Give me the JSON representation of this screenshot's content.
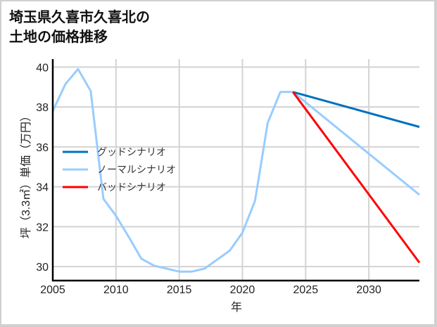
{
  "title_lines": [
    "埼玉県久喜市久喜北の",
    "土地の価格推移"
  ],
  "chart_data": {
    "type": "line",
    "title": "埼玉県久喜市久喜北の土地の価格推移",
    "xlabel": "年",
    "ylabel": "坪（3.3㎡）単価（万円）",
    "xlim": [
      2005,
      2034
    ],
    "ylim": [
      29.3,
      40.4
    ],
    "x_ticks": [
      2005,
      2010,
      2015,
      2020,
      2025,
      2030
    ],
    "y_ticks": [
      30,
      32,
      34,
      36,
      38,
      40
    ],
    "grid": true,
    "legend_position": "center-left",
    "series": [
      {
        "name": "グッドシナリオ",
        "color": "#0070c0",
        "x": [
          2024,
          2034
        ],
        "values": [
          38.75,
          37.0
        ]
      },
      {
        "name": "ノーマルシナリオ",
        "color": "#99ccff",
        "x": [
          2005,
          2006,
          2007,
          2008,
          2009,
          2010,
          2011,
          2012,
          2013,
          2014,
          2015,
          2016,
          2017,
          2018,
          2019,
          2020,
          2021,
          2022,
          2023,
          2024,
          2034
        ],
        "values": [
          37.8,
          39.15,
          39.9,
          38.8,
          33.4,
          32.55,
          31.5,
          30.4,
          30.05,
          29.9,
          29.75,
          29.75,
          29.9,
          30.35,
          30.8,
          31.7,
          33.3,
          37.2,
          38.75,
          38.75,
          33.6
        ]
      },
      {
        "name": "バッドシナリオ",
        "color": "#ff0000",
        "x": [
          2024,
          2034
        ],
        "values": [
          38.75,
          30.2
        ]
      }
    ]
  }
}
